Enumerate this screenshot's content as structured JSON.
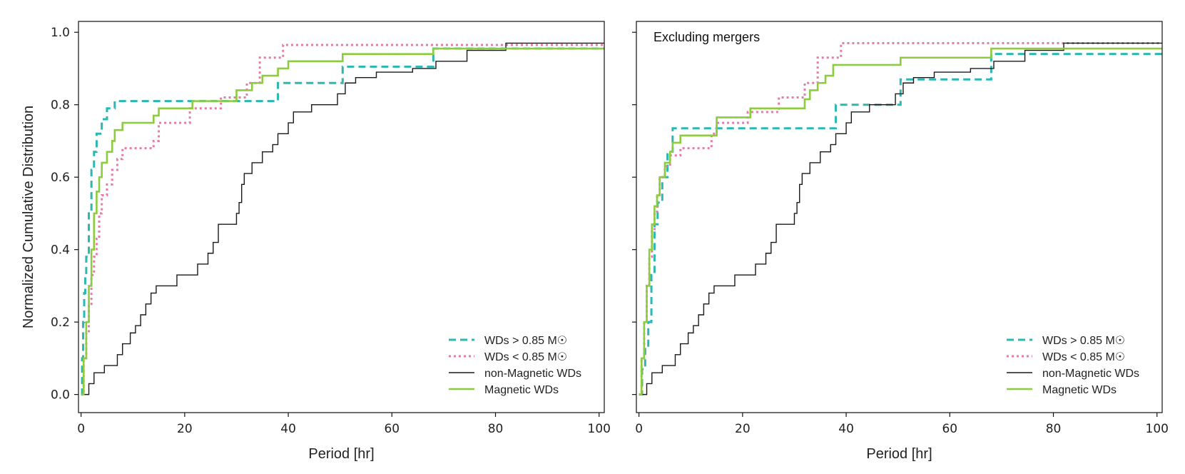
{
  "chart_data": [
    {
      "type": "line",
      "step": true,
      "title": "",
      "annotation": "",
      "xlabel": "Period [hr]",
      "ylabel": "Normalized Cumulative Distribution",
      "xlim": [
        -0.5,
        101
      ],
      "ylim": [
        -0.05,
        1.03
      ],
      "xticks": [
        0,
        20,
        40,
        60,
        80,
        100
      ],
      "yticks": [
        0.0,
        0.2,
        0.4,
        0.6,
        0.8,
        1.0
      ],
      "xtick_labels": [
        "0",
        "20",
        "40",
        "60",
        "80",
        "100"
      ],
      "ytick_labels": [
        "0.0",
        "0.2",
        "0.4",
        "0.6",
        "0.8",
        "1.0"
      ],
      "legend_position": "lower-right",
      "series": [
        {
          "name": "WDs > 0.85 M☉",
          "color": "#2bb8b3",
          "style": "dashed",
          "x": [
            0,
            0.2,
            0.4,
            0.6,
            0.8,
            1.0,
            1.5,
            2.0,
            2.5,
            3.0,
            4.0,
            5.0,
            6.5,
            38,
            50.5,
            68,
            101
          ],
          "y": [
            0.0,
            0.1,
            0.2,
            0.28,
            0.33,
            0.38,
            0.5,
            0.62,
            0.67,
            0.72,
            0.76,
            0.79,
            0.81,
            0.86,
            0.905,
            0.955,
            0.955
          ]
        },
        {
          "name": "WDs < 0.85 M☉",
          "color": "#e87aa9",
          "style": "dotted",
          "x": [
            0,
            0.5,
            1.0,
            1.5,
            2.0,
            2.5,
            3.0,
            3.5,
            4.0,
            5.0,
            6.0,
            7.0,
            8.0,
            14,
            15,
            21,
            27,
            32,
            34.5,
            39,
            101
          ],
          "y": [
            0.0,
            0.1,
            0.17,
            0.25,
            0.33,
            0.38,
            0.43,
            0.5,
            0.55,
            0.58,
            0.62,
            0.65,
            0.68,
            0.7,
            0.75,
            0.79,
            0.82,
            0.86,
            0.93,
            0.965,
            0.965
          ]
        },
        {
          "name": "non-Magnetic WDs",
          "color": "#1a1a1a",
          "style": "solid",
          "x": [
            0,
            1.5,
            2.5,
            4.5,
            7,
            8,
            9.5,
            10.5,
            11.5,
            12.5,
            13.5,
            14.5,
            18.5,
            22.5,
            24.5,
            25.5,
            26.5,
            30,
            30.5,
            31,
            31.5,
            33,
            35,
            37,
            38,
            40,
            41,
            44.5,
            49.5,
            51,
            52,
            53,
            54,
            57,
            64,
            68.5,
            74.5,
            82,
            101
          ],
          "y": [
            0.0,
            0.03,
            0.06,
            0.08,
            0.11,
            0.14,
            0.17,
            0.19,
            0.22,
            0.25,
            0.28,
            0.3,
            0.33,
            0.36,
            0.39,
            0.42,
            0.47,
            0.5,
            0.53,
            0.58,
            0.61,
            0.64,
            0.67,
            0.69,
            0.72,
            0.75,
            0.78,
            0.8,
            0.83,
            0.86,
            0.86,
            0.875,
            0.875,
            0.89,
            0.9,
            0.92,
            0.95,
            0.97,
            0.97
          ]
        },
        {
          "name": "Magnetic WDs",
          "color": "#8dcc3f",
          "style": "solid",
          "x": [
            0,
            0.5,
            1.0,
            1.5,
            2.0,
            2.5,
            3.0,
            3.5,
            4.0,
            5.0,
            6.0,
            6.5,
            8.0,
            14,
            15,
            21.5,
            30,
            33,
            35,
            38,
            40,
            50.5,
            68,
            101
          ],
          "y": [
            0.0,
            0.1,
            0.2,
            0.3,
            0.4,
            0.5,
            0.56,
            0.6,
            0.64,
            0.67,
            0.7,
            0.73,
            0.75,
            0.77,
            0.79,
            0.81,
            0.84,
            0.86,
            0.88,
            0.9,
            0.92,
            0.94,
            0.955,
            0.955
          ]
        }
      ]
    },
    {
      "type": "line",
      "step": true,
      "title": "",
      "annotation": "Excluding mergers",
      "xlabel": "Period [hr]",
      "ylabel": "",
      "xlim": [
        -0.5,
        101
      ],
      "ylim": [
        -0.05,
        1.03
      ],
      "xticks": [
        0,
        20,
        40,
        60,
        80,
        100
      ],
      "yticks": [
        0.0,
        0.2,
        0.4,
        0.6,
        0.8,
        1.0
      ],
      "xtick_labels": [
        "0",
        "20",
        "40",
        "60",
        "80",
        "100"
      ],
      "ytick_labels": [],
      "legend_position": "lower-right",
      "series": [
        {
          "name": "WDs > 0.85 M☉",
          "color": "#2bb8b3",
          "style": "dashed",
          "x": [
            0,
            0.6,
            1.2,
            1.8,
            2.4,
            3.0,
            3.6,
            4.5,
            5.5,
            6.5,
            38,
            50.5,
            53,
            68,
            101
          ],
          "y": [
            0.0,
            0.07,
            0.13,
            0.2,
            0.33,
            0.47,
            0.53,
            0.6,
            0.67,
            0.735,
            0.8,
            0.87,
            0.87,
            0.94,
            0.94
          ]
        },
        {
          "name": "WDs < 0.85 M☉",
          "color": "#e87aa9",
          "style": "dotted",
          "x": [
            0,
            0.5,
            1.0,
            1.5,
            2.0,
            2.5,
            3.0,
            3.5,
            4.0,
            5.0,
            6.0,
            8.0,
            14,
            15,
            21,
            27,
            32,
            34.5,
            39,
            101
          ],
          "y": [
            0.0,
            0.1,
            0.2,
            0.3,
            0.38,
            0.45,
            0.5,
            0.55,
            0.6,
            0.63,
            0.66,
            0.68,
            0.72,
            0.75,
            0.78,
            0.82,
            0.86,
            0.93,
            0.97,
            0.97
          ]
        },
        {
          "name": "non-Magnetic WDs",
          "color": "#1a1a1a",
          "style": "solid",
          "x": [
            0,
            1.5,
            2.5,
            4.5,
            7,
            8,
            9.5,
            10.5,
            11.5,
            12.5,
            13.5,
            14.5,
            18.5,
            22.5,
            24.5,
            25.5,
            26.5,
            30,
            30.5,
            31,
            31.5,
            33,
            35,
            37,
            38,
            40,
            41,
            44.5,
            49.5,
            51,
            52,
            53,
            54,
            57,
            64,
            68.5,
            74.5,
            82,
            101
          ],
          "y": [
            0.0,
            0.03,
            0.06,
            0.08,
            0.11,
            0.14,
            0.17,
            0.19,
            0.22,
            0.25,
            0.28,
            0.3,
            0.33,
            0.36,
            0.39,
            0.42,
            0.47,
            0.5,
            0.53,
            0.58,
            0.61,
            0.64,
            0.67,
            0.69,
            0.72,
            0.75,
            0.78,
            0.8,
            0.83,
            0.86,
            0.86,
            0.875,
            0.875,
            0.89,
            0.9,
            0.92,
            0.95,
            0.97,
            0.97
          ]
        },
        {
          "name": "Magnetic WDs",
          "color": "#8dcc3f",
          "style": "solid",
          "x": [
            0,
            0.5,
            1.0,
            1.5,
            2.0,
            2.5,
            3.0,
            3.5,
            4.0,
            5.0,
            6.0,
            6.5,
            8.0,
            15,
            21.5,
            32,
            33,
            34.5,
            36,
            37.5,
            40,
            50.5,
            68,
            101
          ],
          "y": [
            0.0,
            0.1,
            0.2,
            0.3,
            0.4,
            0.47,
            0.52,
            0.55,
            0.6,
            0.64,
            0.67,
            0.695,
            0.715,
            0.765,
            0.79,
            0.815,
            0.84,
            0.86,
            0.88,
            0.91,
            0.91,
            0.93,
            0.955,
            0.955
          ]
        }
      ]
    }
  ]
}
